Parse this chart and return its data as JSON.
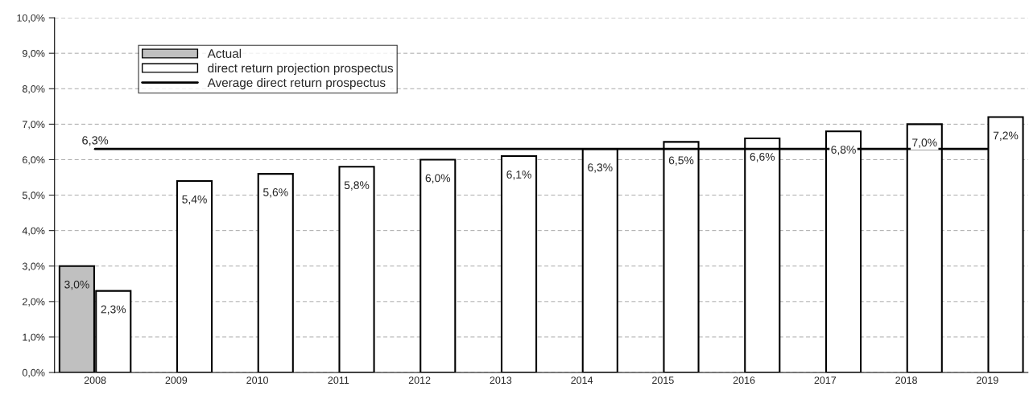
{
  "chart_data": {
    "type": "bar",
    "categories": [
      "2008",
      "2009",
      "2010",
      "2011",
      "2012",
      "2013",
      "2014",
      "2015",
      "2016",
      "2017",
      "2018",
      "2019"
    ],
    "series": [
      {
        "name": "Actual",
        "color": "#c0c0c0",
        "values": [
          3.0,
          null,
          null,
          null,
          null,
          null,
          null,
          null,
          null,
          null,
          null,
          null
        ],
        "value_labels": [
          "3,0%",
          null,
          null,
          null,
          null,
          null,
          null,
          null,
          null,
          null,
          null,
          null
        ]
      },
      {
        "name": "direct return projection prospectus",
        "color": "#ffffff",
        "values": [
          2.3,
          5.4,
          5.6,
          5.8,
          6.0,
          6.1,
          6.3,
          6.5,
          6.6,
          6.8,
          7.0,
          7.2
        ],
        "value_labels": [
          "2,3%",
          "5,4%",
          "5,6%",
          "5,8%",
          "6,0%",
          "6,1%",
          "6,3%",
          "6,5%",
          "6,6%",
          "6,8%",
          "7,0%",
          "7,2%"
        ]
      },
      {
        "name": "Average direct return prospectus",
        "type": "line",
        "color": "#000000",
        "values": [
          6.3,
          6.3,
          6.3,
          6.3,
          6.3,
          6.3,
          6.3,
          6.3,
          6.3,
          6.3,
          6.3,
          6.3
        ],
        "value_labels": [
          "6,3%",
          null,
          null,
          null,
          null,
          null,
          null,
          null,
          null,
          null,
          null,
          null
        ]
      }
    ],
    "ylim": [
      0,
      10
    ],
    "yticks": [
      {
        "value": 0,
        "label": "0,0%"
      },
      {
        "value": 1,
        "label": "1,0%"
      },
      {
        "value": 2,
        "label": "2,0%"
      },
      {
        "value": 3,
        "label": "3,0%"
      },
      {
        "value": 4,
        "label": "4,0%"
      },
      {
        "value": 5,
        "label": "5,0%"
      },
      {
        "value": 6,
        "label": "6,0%"
      },
      {
        "value": 7,
        "label": "7,0%"
      },
      {
        "value": 8,
        "label": "8,0%"
      },
      {
        "value": 9,
        "label": "9,0%"
      },
      {
        "value": 10,
        "label": "10,0%"
      }
    ],
    "grid": "y",
    "legend": "top left",
    "line_style": "solid"
  }
}
